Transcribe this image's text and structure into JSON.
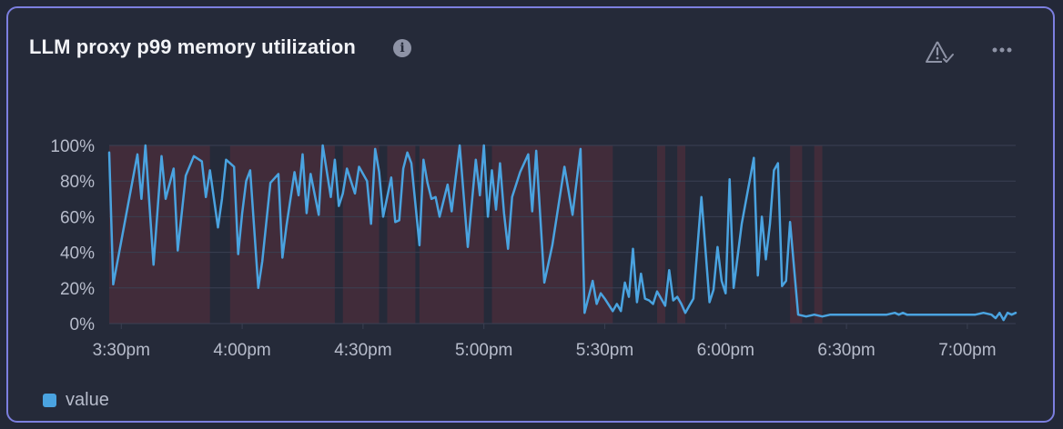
{
  "panel": {
    "title": "LLM proxy p99 memory utilization",
    "info_glyph": "i",
    "icons": [
      "info-icon",
      "alert-check-icon",
      "more-horizontal-icon"
    ]
  },
  "legend": {
    "label": "value",
    "color": "#4aa3e0"
  },
  "colors": {
    "line": "#4aa3e0",
    "alert_band": "#5a2e3d",
    "grid": "#3a4052",
    "text": "#b7bccb"
  },
  "chart_data": {
    "type": "line",
    "title": "LLM proxy p99 memory utilization",
    "xlabel": "",
    "ylabel": "",
    "x_ticks": [
      "3:30pm",
      "4:00pm",
      "4:30pm",
      "5:00pm",
      "5:30pm",
      "6:00pm",
      "6:30pm",
      "7:00pm"
    ],
    "y_ticks": [
      "0%",
      "20%",
      "40%",
      "60%",
      "80%",
      "100%"
    ],
    "ylim": [
      0,
      100
    ],
    "x_range_minutes_after_3pm": [
      27,
      252
    ],
    "grid": true,
    "legend_position": "bottom-left",
    "series": [
      {
        "name": "value",
        "x": [
          27,
          28,
          34,
          35,
          36,
          38,
          40,
          41,
          43,
          44,
          45,
          46,
          48,
          50,
          51,
          52,
          54,
          55,
          56,
          58,
          59,
          60,
          61,
          62,
          64,
          65,
          67,
          69,
          70,
          71,
          73,
          74,
          75,
          76,
          77,
          79,
          80,
          82,
          83,
          84,
          85,
          86,
          88,
          89,
          91,
          92,
          93,
          94,
          95,
          97,
          98,
          99,
          100,
          101,
          102,
          104,
          105,
          106,
          107,
          108,
          109,
          111,
          112,
          113,
          114,
          116,
          118,
          119,
          120,
          121,
          122,
          123,
          124,
          125,
          126,
          127,
          129,
          131,
          132,
          133,
          135,
          137,
          140,
          142,
          144,
          145,
          147,
          148,
          149,
          150,
          152,
          153,
          154,
          155,
          156,
          157,
          158,
          159,
          160,
          161,
          162,
          163,
          165,
          166,
          167,
          168,
          169,
          170,
          171,
          172,
          174,
          176,
          177,
          178,
          179,
          180,
          181,
          182,
          184,
          187,
          188,
          189,
          190,
          191,
          192,
          193,
          194,
          195,
          196,
          198,
          200,
          202,
          204,
          206,
          208,
          210,
          212,
          214,
          216,
          218,
          220,
          222,
          223,
          224,
          225,
          226,
          228,
          230,
          232,
          234,
          236,
          238,
          240,
          242,
          244,
          246,
          247,
          248,
          249,
          250,
          251,
          252
        ],
        "values": [
          96,
          22,
          95,
          70,
          100,
          33,
          94,
          70,
          87,
          41,
          62,
          83,
          94,
          91,
          71,
          86,
          54,
          70,
          92,
          88,
          39,
          62,
          80,
          86,
          20,
          35,
          79,
          84,
          37,
          55,
          85,
          72,
          95,
          62,
          84,
          61,
          100,
          71,
          92,
          66,
          73,
          87,
          73,
          88,
          80,
          56,
          98,
          85,
          60,
          82,
          57,
          58,
          87,
          96,
          90,
          44,
          92,
          79,
          70,
          71,
          60,
          78,
          63,
          82,
          100,
          43,
          92,
          72,
          100,
          60,
          86,
          64,
          90,
          62,
          42,
          71,
          85,
          95,
          63,
          97,
          23,
          44,
          88,
          61,
          98,
          6,
          24,
          11,
          17,
          14,
          7,
          11,
          7,
          23,
          15,
          42,
          12,
          28,
          14,
          13,
          11,
          18,
          10,
          30,
          13,
          15,
          11,
          6,
          10,
          14,
          71,
          12,
          19,
          43,
          24,
          17,
          81,
          20,
          56,
          93,
          27,
          60,
          36,
          56,
          86,
          90,
          21,
          24,
          57,
          5,
          4,
          5,
          4,
          5,
          5,
          5,
          5,
          5,
          5,
          5,
          5,
          6,
          5,
          6,
          5,
          5,
          5,
          5,
          5,
          5,
          5,
          5,
          5,
          5,
          6,
          5,
          3,
          6,
          2,
          6,
          5,
          6
        ]
      }
    ]
  }
}
